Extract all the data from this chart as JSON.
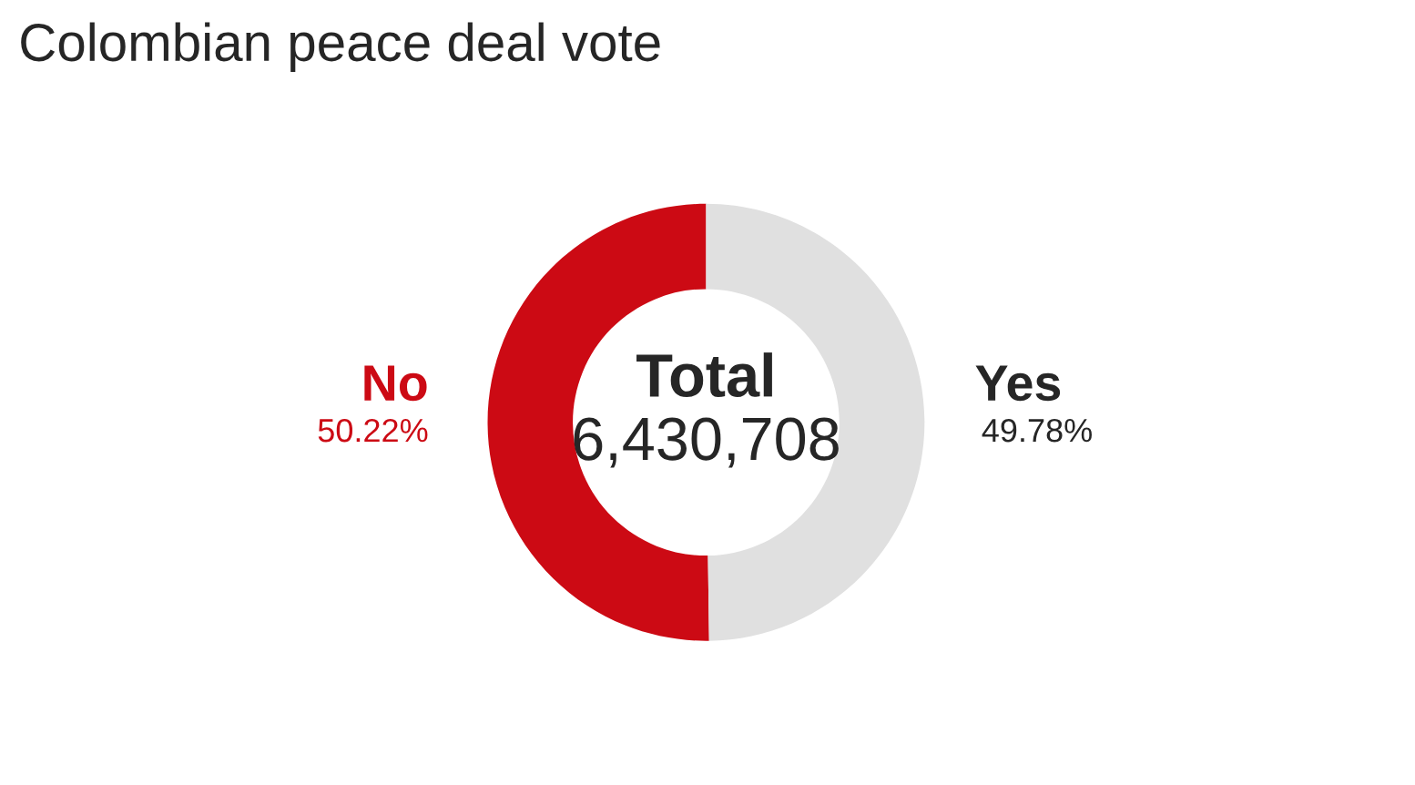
{
  "chart_data": {
    "type": "donut",
    "title": "Colombian peace deal vote",
    "categories": [
      "No",
      "Yes"
    ],
    "values": [
      50.22,
      49.78
    ],
    "colors": [
      "#cc0a14",
      "#e0e0e0"
    ],
    "value_labels": [
      "50.22%",
      "49.78%"
    ],
    "annotations": [
      "Total",
      "6,430,708"
    ]
  }
}
